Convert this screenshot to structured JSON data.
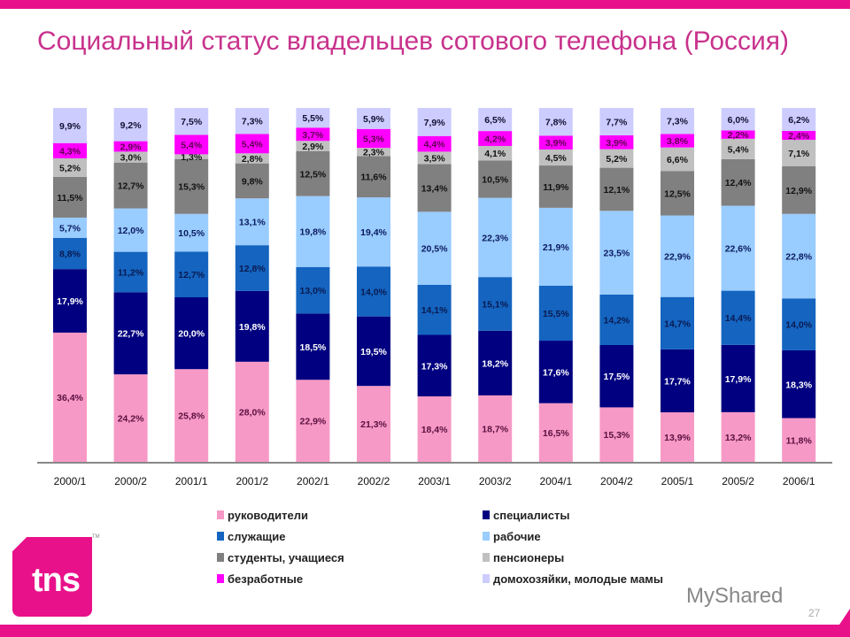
{
  "title": "Социальный статус владельцев сотового телефона (Россия)",
  "page_number": "27",
  "watermark": "MyShared",
  "logo": "tns",
  "chart_data": {
    "type": "bar",
    "stacked": true,
    "title": "",
    "xlabel": "",
    "ylabel": "",
    "ylim": [
      0,
      100
    ],
    "grid": false,
    "legend_position": "bottom",
    "categories": [
      "2000/1",
      "2000/2",
      "2001/1",
      "2001/2",
      "2002/1",
      "2002/2",
      "2003/1",
      "2003/2",
      "2004/1",
      "2004/2",
      "2005/1",
      "2005/2",
      "2006/1"
    ],
    "series": [
      {
        "name": "руководители",
        "color": "#f799c6",
        "label_color": "#5a1040",
        "values": [
          36.4,
          24.2,
          25.8,
          28.0,
          22.9,
          21.3,
          18.4,
          18.7,
          16.5,
          15.3,
          13.9,
          13.2,
          11.8
        ]
      },
      {
        "name": "специалисты",
        "color": "#000080",
        "label_color": "#ffffff",
        "values": [
          17.9,
          22.7,
          20.0,
          19.8,
          18.5,
          19.5,
          17.3,
          18.2,
          17.6,
          17.5,
          17.7,
          17.9,
          18.3
        ]
      },
      {
        "name": "служащие",
        "color": "#1464c0",
        "label_color": "#0a1a50",
        "values": [
          8.8,
          11.2,
          12.7,
          12.8,
          13.0,
          14.0,
          14.1,
          15.1,
          15.5,
          14.2,
          14.7,
          14.4,
          14.0
        ]
      },
      {
        "name": "рабочие",
        "color": "#99ccff",
        "label_color": "#0a1a60",
        "values": [
          5.7,
          12.0,
          10.5,
          13.1,
          19.8,
          19.4,
          20.5,
          22.3,
          21.9,
          23.5,
          22.9,
          22.6,
          22.8
        ]
      },
      {
        "name": "студенты, учащиеся",
        "color": "#808080",
        "label_color": "#111111",
        "values": [
          11.5,
          12.7,
          15.3,
          9.8,
          12.5,
          11.6,
          13.4,
          10.5,
          11.9,
          12.1,
          12.5,
          12.4,
          12.9
        ]
      },
      {
        "name": "пенсионеры",
        "color": "#c0c0c0",
        "label_color": "#111111",
        "values": [
          5.2,
          3.0,
          1.3,
          2.8,
          2.9,
          2.3,
          3.5,
          4.1,
          4.5,
          5.2,
          6.6,
          5.4,
          7.1
        ]
      },
      {
        "name": "безработные",
        "color": "#ff00ff",
        "label_color": "#600050",
        "values": [
          4.3,
          2.9,
          5.4,
          5.4,
          3.7,
          5.3,
          4.4,
          4.2,
          3.9,
          3.9,
          3.8,
          2.2,
          2.4
        ]
      },
      {
        "name": "домохозяйки, молодые мамы",
        "color": "#ccccff",
        "label_color": "#111133",
        "values": [
          9.9,
          9.2,
          7.5,
          7.3,
          5.5,
          5.9,
          7.9,
          6.5,
          7.8,
          7.7,
          7.3,
          6.0,
          6.2
        ]
      }
    ]
  }
}
